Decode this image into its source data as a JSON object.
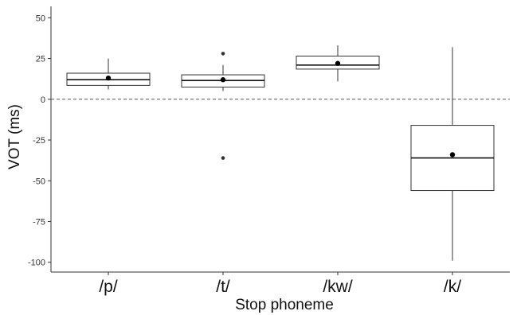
{
  "chart_data": {
    "type": "box",
    "xlabel": "Stop phoneme",
    "ylabel": "VOT (ms)",
    "ylim": [
      -106,
      57
    ],
    "yticks": [
      50,
      25,
      0,
      -25,
      -50,
      -75,
      -100
    ],
    "ytick_labels": [
      "50",
      "25",
      "0",
      "-25",
      "-50",
      "-75",
      "-100"
    ],
    "reference_line": {
      "y": 0,
      "style": "dashed"
    },
    "grid": false,
    "categories": [
      "/p/",
      "/t/",
      "/kw/",
      "/k/"
    ],
    "boxes": [
      {
        "category": "/p/",
        "whisker_low": 6,
        "q1": 8.5,
        "median": 12,
        "q3": 16,
        "whisker_high": 25,
        "mean": 13,
        "outliers": []
      },
      {
        "category": "/t/",
        "whisker_low": 5,
        "q1": 7.5,
        "median": 11.5,
        "q3": 15,
        "whisker_high": 21,
        "mean": 12,
        "outliers": [
          28,
          -36
        ]
      },
      {
        "category": "/kw/",
        "whisker_low": 11,
        "q1": 18.5,
        "median": 21,
        "q3": 26.5,
        "whisker_high": 33,
        "mean": 22,
        "outliers": []
      },
      {
        "category": "/k/",
        "whisker_low": -99,
        "q1": -56,
        "median": -36,
        "q3": -16,
        "whisker_high": 32,
        "mean": -34,
        "outliers": []
      }
    ],
    "colors": {
      "line": "#333333",
      "box_fill": "#ffffff",
      "point": "#000000",
      "reference": "#555555"
    }
  }
}
